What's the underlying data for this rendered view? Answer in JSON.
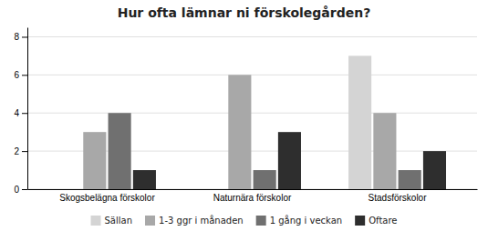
{
  "chart_data": {
    "type": "bar",
    "title": "Hur ofta lämnar ni förskolegården?",
    "categories": [
      "Skogsbelägna förskolor",
      "Naturnära förskolor",
      "Stadsförskolor"
    ],
    "series": [
      {
        "name": "Sällan",
        "color": "#d4d4d4",
        "values": [
          0,
          0,
          7
        ]
      },
      {
        "name": "1-3 ggr i månaden",
        "color": "#a8a8a8",
        "values": [
          3,
          6,
          4
        ]
      },
      {
        "name": "1 gång i veckan",
        "color": "#707070",
        "values": [
          4,
          1,
          1
        ]
      },
      {
        "name": "Oftare",
        "color": "#2e2e2e",
        "values": [
          1,
          3,
          2
        ]
      }
    ],
    "ylim": [
      0,
      8.5
    ],
    "yticks": [
      0,
      2,
      4,
      6,
      8
    ],
    "grid": true,
    "legend": "bottom"
  }
}
